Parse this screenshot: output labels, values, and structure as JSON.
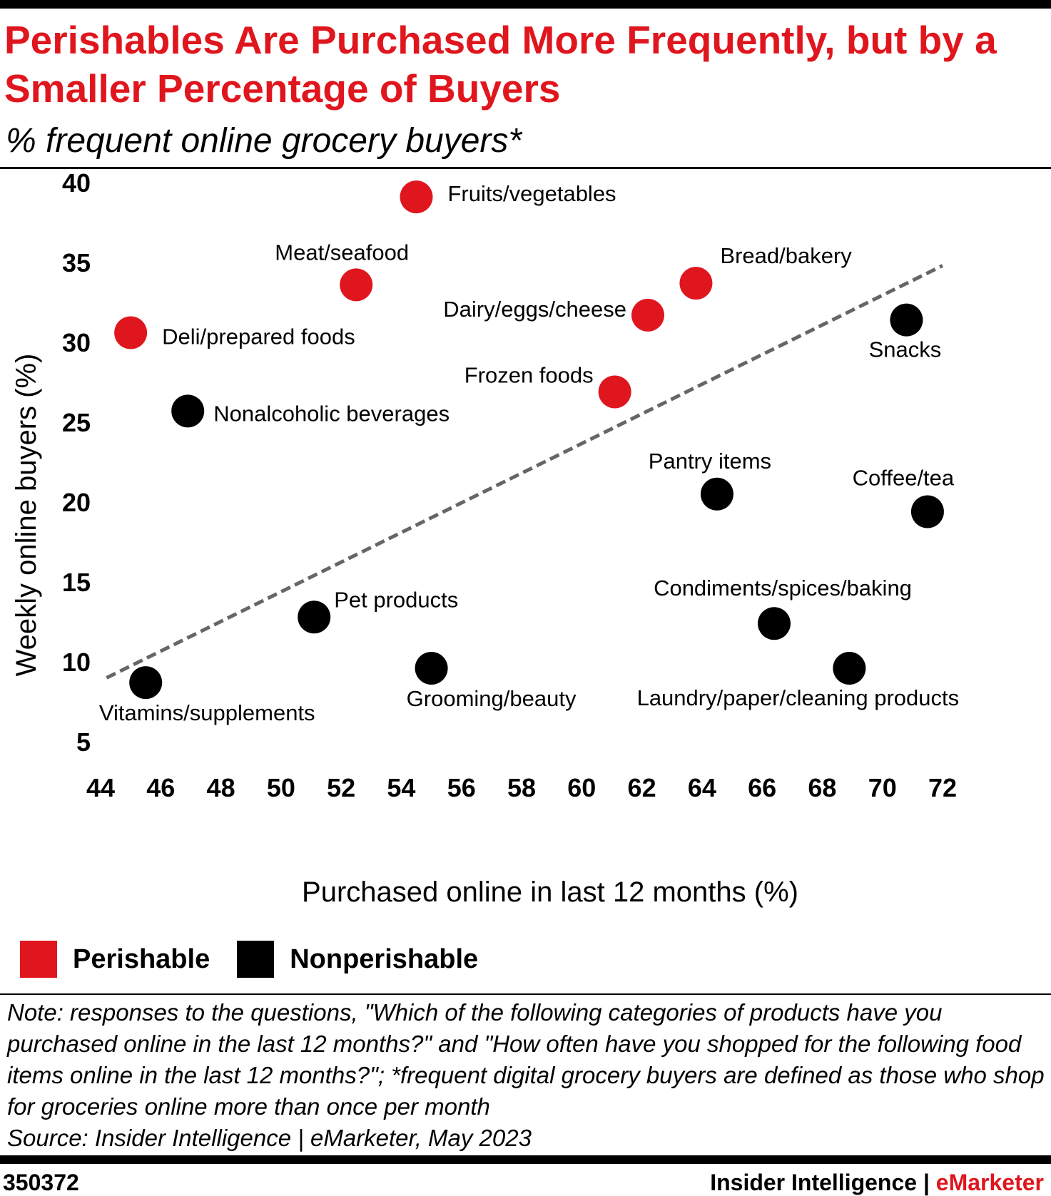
{
  "title": "Perishables Are Purchased More Frequently, but by a Smaller Percentage of Buyers",
  "subtitle": "% frequent online grocery buyers*",
  "chart_data": {
    "type": "scatter",
    "xlabel": "Purchased online in last 12 months (%)",
    "ylabel": "Weekly online buyers (%)",
    "xlim": [
      44,
      72
    ],
    "ylim": [
      5,
      40
    ],
    "x_ticks": [
      "44",
      "46",
      "48",
      "50",
      "52",
      "54",
      "56",
      "58",
      "60",
      "62",
      "64",
      "66",
      "68",
      "70",
      "72"
    ],
    "y_ticks": [
      "40",
      "35",
      "30",
      "25",
      "20",
      "15",
      "10",
      "5"
    ],
    "grid": false,
    "legend_position": "bottom-left",
    "colors": {
      "Perishable": "#e0161e",
      "Nonperishable": "#000000"
    },
    "trendline": {
      "style": "dashed",
      "color": "#666666",
      "from": [
        44.2,
        9
      ],
      "to": [
        72,
        34.8
      ]
    },
    "series": [
      {
        "name": "Perishable",
        "points": [
          {
            "label": "Fruits/vegetables",
            "x": 54.5,
            "y": 39.1
          },
          {
            "label": "Meat/seafood",
            "x": 52.5,
            "y": 33.6
          },
          {
            "label": "Bread/bakery",
            "x": 63.8,
            "y": 33.7
          },
          {
            "label": "Dairy/eggs/cheese",
            "x": 62.2,
            "y": 31.7
          },
          {
            "label": "Deli/prepared foods",
            "x": 45,
            "y": 30.6
          },
          {
            "label": "Frozen foods",
            "x": 61.1,
            "y": 26.9
          }
        ]
      },
      {
        "name": "Nonperishable",
        "points": [
          {
            "label": "Snacks",
            "x": 70.8,
            "y": 31.4
          },
          {
            "label": "Nonalcoholic beverages",
            "x": 46.9,
            "y": 25.7
          },
          {
            "label": "Pantry items",
            "x": 64.5,
            "y": 20.5
          },
          {
            "label": "Coffee/tea",
            "x": 71.5,
            "y": 19.4
          },
          {
            "label": "Pet products",
            "x": 51.1,
            "y": 12.8
          },
          {
            "label": "Condiments/spices/baking",
            "x": 66.4,
            "y": 12.4
          },
          {
            "label": "Grooming/beauty",
            "x": 55,
            "y": 9.6
          },
          {
            "label": "Laundry/paper/cleaning products",
            "x": 68.9,
            "y": 9.6
          },
          {
            "label": "Vitamins/supplements",
            "x": 45.5,
            "y": 8.7
          }
        ]
      }
    ]
  },
  "legend": [
    {
      "label": "Perishable",
      "color": "#e0161e"
    },
    {
      "label": "Nonperishable",
      "color": "#000000"
    }
  ],
  "note": "Note: responses to the questions, \"Which of the following categories of products have you purchased online in the last 12 months?\" and  \"How often have you shopped for the following food items online in the last 12 months?\"; *frequent digital grocery buyers are defined as those who shop for groceries online more than once per month",
  "source": "Source: Insider Intelligence | eMarketer, May 2023",
  "footer": {
    "chart_id": "350372",
    "brand_main": "Insider Intelligence | ",
    "brand_accent": "eMarketer"
  }
}
